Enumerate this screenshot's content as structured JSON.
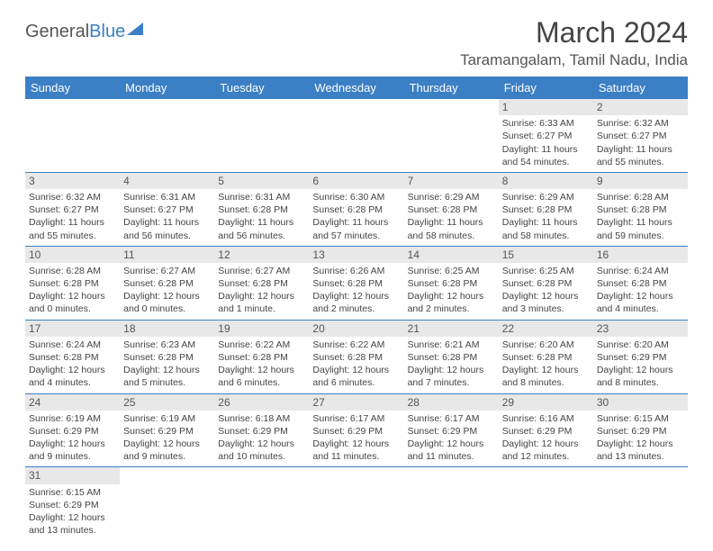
{
  "logo": {
    "general": "General",
    "blue": "Blue"
  },
  "title": "March 2024",
  "location": "Taramangalam, Tamil Nadu, India",
  "header_bg": "#3b7fc4",
  "weekdays": [
    "Sunday",
    "Monday",
    "Tuesday",
    "Wednesday",
    "Thursday",
    "Friday",
    "Saturday"
  ],
  "weeks": [
    [
      null,
      null,
      null,
      null,
      null,
      {
        "n": "1",
        "sr": "Sunrise: 6:33 AM",
        "ss": "Sunset: 6:27 PM",
        "d1": "Daylight: 11 hours",
        "d2": "and 54 minutes."
      },
      {
        "n": "2",
        "sr": "Sunrise: 6:32 AM",
        "ss": "Sunset: 6:27 PM",
        "d1": "Daylight: 11 hours",
        "d2": "and 55 minutes."
      }
    ],
    [
      {
        "n": "3",
        "sr": "Sunrise: 6:32 AM",
        "ss": "Sunset: 6:27 PM",
        "d1": "Daylight: 11 hours",
        "d2": "and 55 minutes."
      },
      {
        "n": "4",
        "sr": "Sunrise: 6:31 AM",
        "ss": "Sunset: 6:27 PM",
        "d1": "Daylight: 11 hours",
        "d2": "and 56 minutes."
      },
      {
        "n": "5",
        "sr": "Sunrise: 6:31 AM",
        "ss": "Sunset: 6:28 PM",
        "d1": "Daylight: 11 hours",
        "d2": "and 56 minutes."
      },
      {
        "n": "6",
        "sr": "Sunrise: 6:30 AM",
        "ss": "Sunset: 6:28 PM",
        "d1": "Daylight: 11 hours",
        "d2": "and 57 minutes."
      },
      {
        "n": "7",
        "sr": "Sunrise: 6:29 AM",
        "ss": "Sunset: 6:28 PM",
        "d1": "Daylight: 11 hours",
        "d2": "and 58 minutes."
      },
      {
        "n": "8",
        "sr": "Sunrise: 6:29 AM",
        "ss": "Sunset: 6:28 PM",
        "d1": "Daylight: 11 hours",
        "d2": "and 58 minutes."
      },
      {
        "n": "9",
        "sr": "Sunrise: 6:28 AM",
        "ss": "Sunset: 6:28 PM",
        "d1": "Daylight: 11 hours",
        "d2": "and 59 minutes."
      }
    ],
    [
      {
        "n": "10",
        "sr": "Sunrise: 6:28 AM",
        "ss": "Sunset: 6:28 PM",
        "d1": "Daylight: 12 hours",
        "d2": "and 0 minutes."
      },
      {
        "n": "11",
        "sr": "Sunrise: 6:27 AM",
        "ss": "Sunset: 6:28 PM",
        "d1": "Daylight: 12 hours",
        "d2": "and 0 minutes."
      },
      {
        "n": "12",
        "sr": "Sunrise: 6:27 AM",
        "ss": "Sunset: 6:28 PM",
        "d1": "Daylight: 12 hours",
        "d2": "and 1 minute."
      },
      {
        "n": "13",
        "sr": "Sunrise: 6:26 AM",
        "ss": "Sunset: 6:28 PM",
        "d1": "Daylight: 12 hours",
        "d2": "and 2 minutes."
      },
      {
        "n": "14",
        "sr": "Sunrise: 6:25 AM",
        "ss": "Sunset: 6:28 PM",
        "d1": "Daylight: 12 hours",
        "d2": "and 2 minutes."
      },
      {
        "n": "15",
        "sr": "Sunrise: 6:25 AM",
        "ss": "Sunset: 6:28 PM",
        "d1": "Daylight: 12 hours",
        "d2": "and 3 minutes."
      },
      {
        "n": "16",
        "sr": "Sunrise: 6:24 AM",
        "ss": "Sunset: 6:28 PM",
        "d1": "Daylight: 12 hours",
        "d2": "and 4 minutes."
      }
    ],
    [
      {
        "n": "17",
        "sr": "Sunrise: 6:24 AM",
        "ss": "Sunset: 6:28 PM",
        "d1": "Daylight: 12 hours",
        "d2": "and 4 minutes."
      },
      {
        "n": "18",
        "sr": "Sunrise: 6:23 AM",
        "ss": "Sunset: 6:28 PM",
        "d1": "Daylight: 12 hours",
        "d2": "and 5 minutes."
      },
      {
        "n": "19",
        "sr": "Sunrise: 6:22 AM",
        "ss": "Sunset: 6:28 PM",
        "d1": "Daylight: 12 hours",
        "d2": "and 6 minutes."
      },
      {
        "n": "20",
        "sr": "Sunrise: 6:22 AM",
        "ss": "Sunset: 6:28 PM",
        "d1": "Daylight: 12 hours",
        "d2": "and 6 minutes."
      },
      {
        "n": "21",
        "sr": "Sunrise: 6:21 AM",
        "ss": "Sunset: 6:28 PM",
        "d1": "Daylight: 12 hours",
        "d2": "and 7 minutes."
      },
      {
        "n": "22",
        "sr": "Sunrise: 6:20 AM",
        "ss": "Sunset: 6:28 PM",
        "d1": "Daylight: 12 hours",
        "d2": "and 8 minutes."
      },
      {
        "n": "23",
        "sr": "Sunrise: 6:20 AM",
        "ss": "Sunset: 6:29 PM",
        "d1": "Daylight: 12 hours",
        "d2": "and 8 minutes."
      }
    ],
    [
      {
        "n": "24",
        "sr": "Sunrise: 6:19 AM",
        "ss": "Sunset: 6:29 PM",
        "d1": "Daylight: 12 hours",
        "d2": "and 9 minutes."
      },
      {
        "n": "25",
        "sr": "Sunrise: 6:19 AM",
        "ss": "Sunset: 6:29 PM",
        "d1": "Daylight: 12 hours",
        "d2": "and 9 minutes."
      },
      {
        "n": "26",
        "sr": "Sunrise: 6:18 AM",
        "ss": "Sunset: 6:29 PM",
        "d1": "Daylight: 12 hours",
        "d2": "and 10 minutes."
      },
      {
        "n": "27",
        "sr": "Sunrise: 6:17 AM",
        "ss": "Sunset: 6:29 PM",
        "d1": "Daylight: 12 hours",
        "d2": "and 11 minutes."
      },
      {
        "n": "28",
        "sr": "Sunrise: 6:17 AM",
        "ss": "Sunset: 6:29 PM",
        "d1": "Daylight: 12 hours",
        "d2": "and 11 minutes."
      },
      {
        "n": "29",
        "sr": "Sunrise: 6:16 AM",
        "ss": "Sunset: 6:29 PM",
        "d1": "Daylight: 12 hours",
        "d2": "and 12 minutes."
      },
      {
        "n": "30",
        "sr": "Sunrise: 6:15 AM",
        "ss": "Sunset: 6:29 PM",
        "d1": "Daylight: 12 hours",
        "d2": "and 13 minutes."
      }
    ],
    [
      {
        "n": "31",
        "sr": "Sunrise: 6:15 AM",
        "ss": "Sunset: 6:29 PM",
        "d1": "Daylight: 12 hours",
        "d2": "and 13 minutes."
      },
      null,
      null,
      null,
      null,
      null,
      null
    ]
  ]
}
